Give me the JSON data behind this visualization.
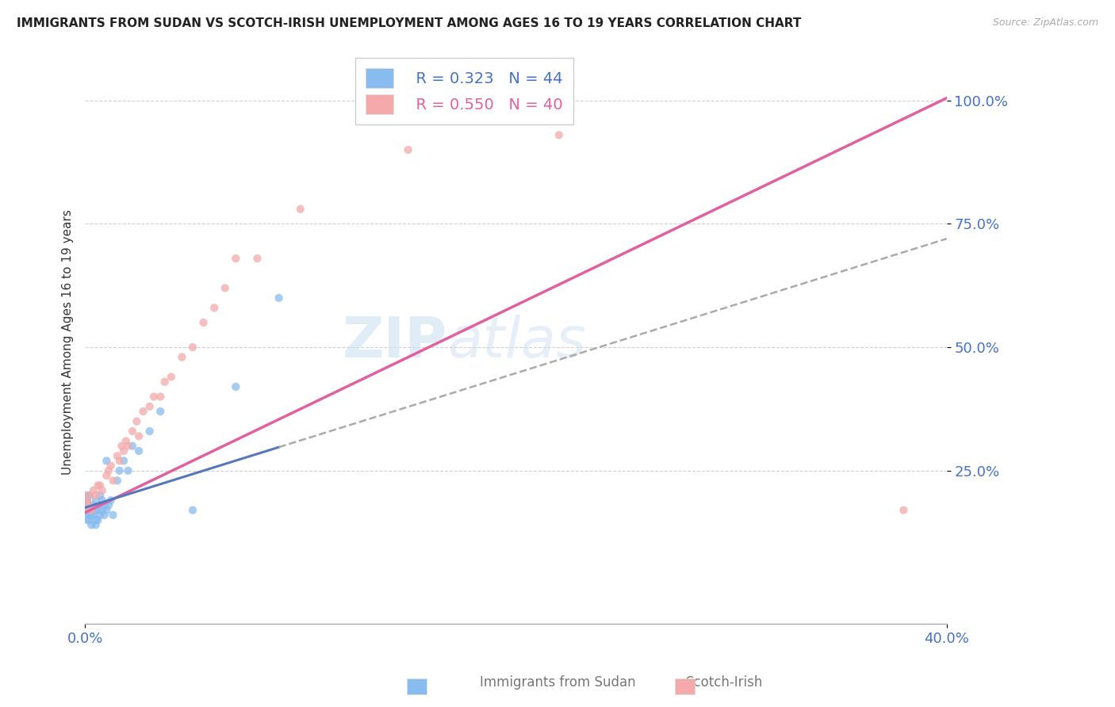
{
  "title": "IMMIGRANTS FROM SUDAN VS SCOTCH-IRISH UNEMPLOYMENT AMONG AGES 16 TO 19 YEARS CORRELATION CHART",
  "source": "Source: ZipAtlas.com",
  "xmin": 0.0,
  "xmax": 0.4,
  "ymin": -0.06,
  "ymax": 1.08,
  "ylabel_vals": [
    0.25,
    0.5,
    0.75,
    1.0
  ],
  "ylabel_labels": [
    "25.0%",
    "50.0%",
    "75.0%",
    "100.0%"
  ],
  "legend_r_blue": "R = 0.323",
  "legend_n_blue": "N = 44",
  "legend_r_pink": "R = 0.550",
  "legend_n_pink": "N = 40",
  "blue_color": "#88bbee",
  "pink_color": "#f4aaaa",
  "blue_line_color": "#8899cc",
  "pink_line_color": "#e060a0",
  "watermark_zip": "ZIP",
  "watermark_atlas": "atlas",
  "blue_scatter_x": [
    0.0,
    0.0,
    0.0,
    0.0,
    0.001,
    0.001,
    0.001,
    0.002,
    0.002,
    0.002,
    0.002,
    0.003,
    0.003,
    0.003,
    0.004,
    0.004,
    0.005,
    0.005,
    0.005,
    0.005,
    0.006,
    0.006,
    0.007,
    0.007,
    0.008,
    0.008,
    0.009,
    0.009,
    0.01,
    0.01,
    0.011,
    0.012,
    0.013,
    0.015,
    0.016,
    0.018,
    0.02,
    0.022,
    0.025,
    0.03,
    0.035,
    0.05,
    0.07,
    0.09
  ],
  "blue_scatter_y": [
    0.16,
    0.18,
    0.19,
    0.2,
    0.15,
    0.17,
    0.19,
    0.15,
    0.16,
    0.18,
    0.2,
    0.14,
    0.16,
    0.17,
    0.16,
    0.18,
    0.14,
    0.15,
    0.17,
    0.19,
    0.15,
    0.17,
    0.16,
    0.2,
    0.17,
    0.19,
    0.16,
    0.18,
    0.17,
    0.27,
    0.18,
    0.19,
    0.16,
    0.23,
    0.25,
    0.27,
    0.25,
    0.3,
    0.29,
    0.33,
    0.37,
    0.17,
    0.42,
    0.6
  ],
  "pink_scatter_x": [
    0.0,
    0.001,
    0.002,
    0.002,
    0.003,
    0.004,
    0.005,
    0.006,
    0.007,
    0.008,
    0.01,
    0.011,
    0.012,
    0.013,
    0.015,
    0.016,
    0.017,
    0.018,
    0.019,
    0.02,
    0.022,
    0.024,
    0.025,
    0.027,
    0.03,
    0.032,
    0.035,
    0.037,
    0.04,
    0.045,
    0.05,
    0.055,
    0.06,
    0.065,
    0.07,
    0.08,
    0.1,
    0.15,
    0.22,
    0.38
  ],
  "pink_scatter_y": [
    0.17,
    0.19,
    0.18,
    0.2,
    0.17,
    0.21,
    0.2,
    0.22,
    0.22,
    0.21,
    0.24,
    0.25,
    0.26,
    0.23,
    0.28,
    0.27,
    0.3,
    0.29,
    0.31,
    0.3,
    0.33,
    0.35,
    0.32,
    0.37,
    0.38,
    0.4,
    0.4,
    0.43,
    0.44,
    0.48,
    0.5,
    0.55,
    0.58,
    0.62,
    0.68,
    0.68,
    0.78,
    0.9,
    0.93,
    0.17
  ],
  "blue_line_x0": 0.0,
  "blue_line_x1": 0.4,
  "blue_line_y0": 0.175,
  "blue_line_y1": 0.72,
  "pink_line_x0": 0.0,
  "pink_line_x1": 0.4,
  "pink_line_y0": 0.165,
  "pink_line_y1": 1.005
}
